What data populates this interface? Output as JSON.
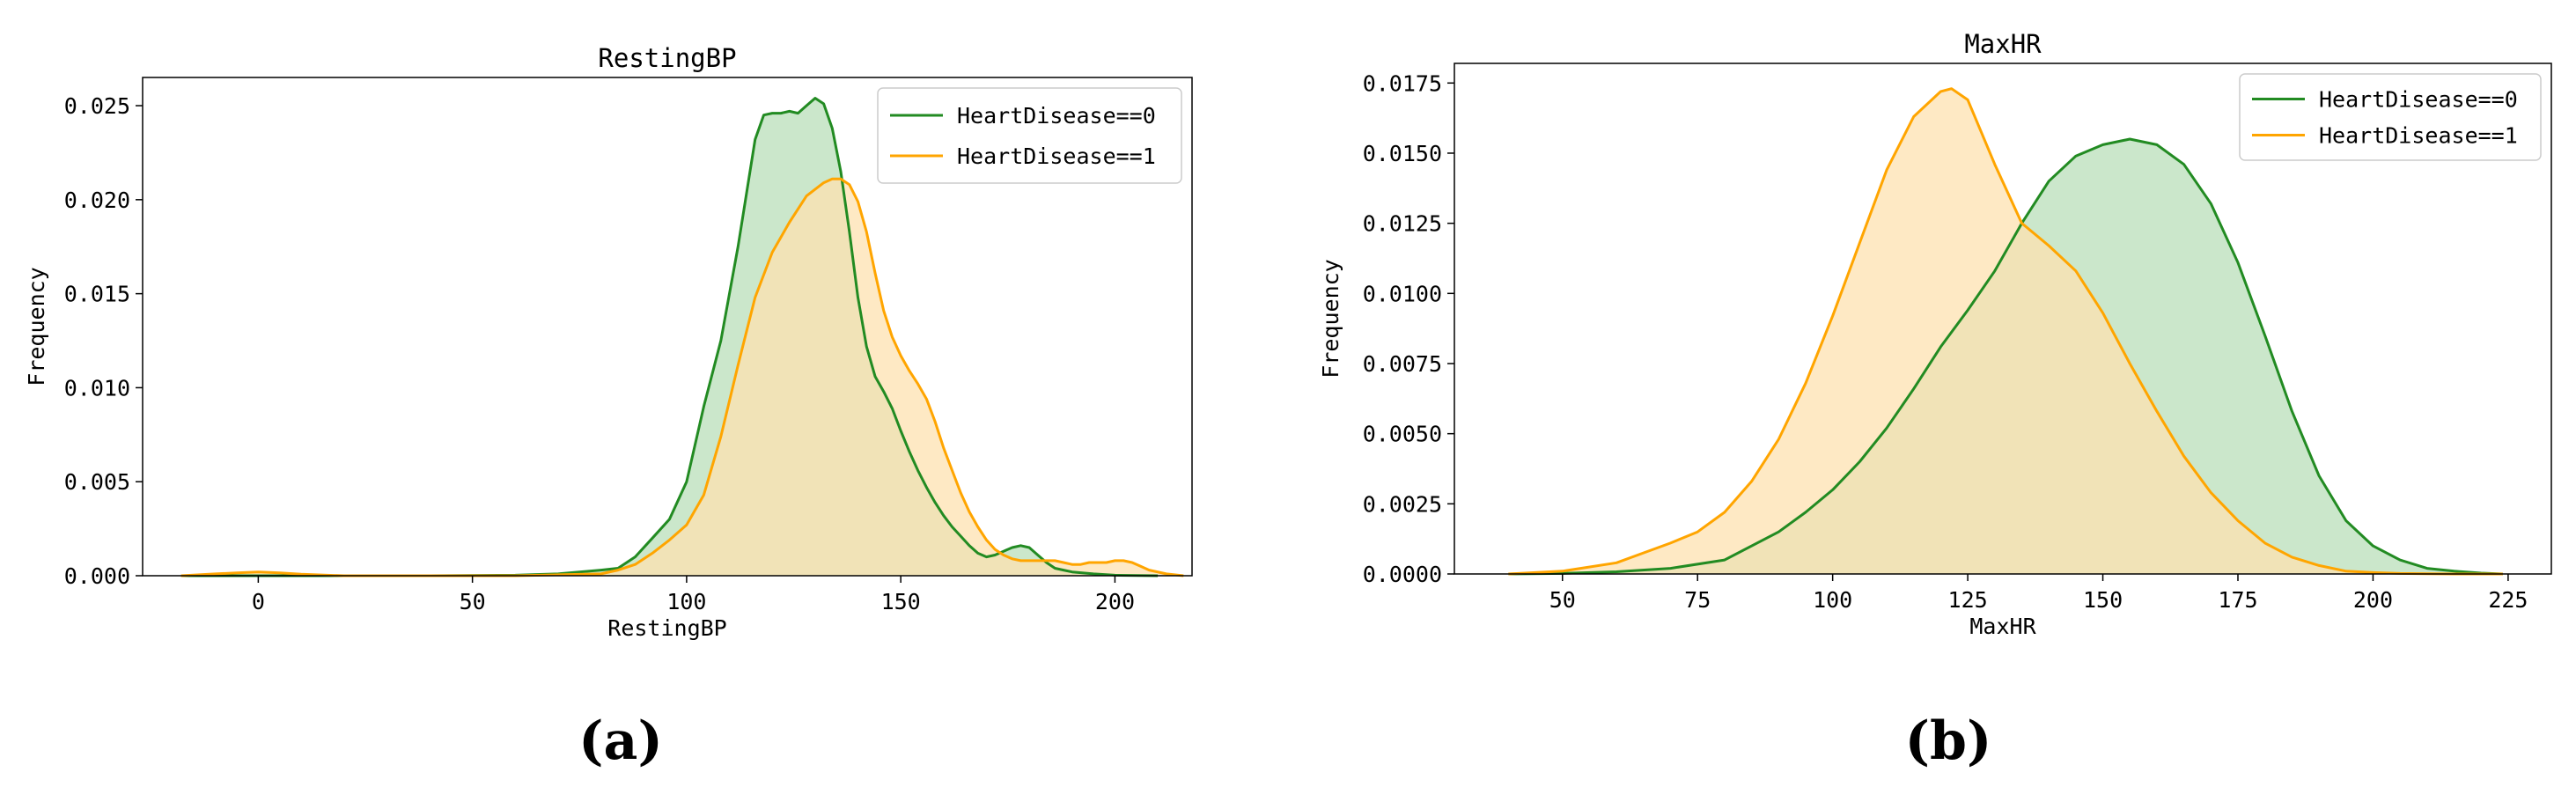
{
  "chart_data": [
    {
      "type": "area",
      "title": "RestingBP",
      "xlabel": "RestingBP",
      "ylabel": "Frequency",
      "xlim": [
        -27,
        218
      ],
      "ylim": [
        0,
        0.0265
      ],
      "xticks": [
        0,
        50,
        100,
        150,
        200
      ],
      "xtick_labels": [
        "0",
        "50",
        "100",
        "150",
        "200"
      ],
      "yticks": [
        0,
        0.005,
        0.01,
        0.015,
        0.02,
        0.025
      ],
      "ytick_labels": [
        "0.000",
        "0.005",
        "0.010",
        "0.015",
        "0.020",
        "0.025"
      ],
      "grid": false,
      "legend": "top-right",
      "panel_label": "(a)",
      "series": [
        {
          "name": "HeartDisease==0",
          "color": "#228B22",
          "fill": "#b9dfb9",
          "x": [
            -18,
            40,
            60,
            70,
            75,
            80,
            84,
            88,
            92,
            96,
            100,
            104,
            108,
            112,
            116,
            118,
            120,
            122,
            124,
            126,
            128,
            130,
            132,
            134,
            136,
            138,
            140,
            142,
            144,
            146,
            148,
            150,
            152,
            154,
            156,
            158,
            160,
            162,
            164,
            166,
            168,
            170,
            172,
            174,
            176,
            178,
            180,
            182,
            184,
            186,
            188,
            190,
            195,
            200,
            205,
            210
          ],
          "y": [
            0,
            0,
            3e-05,
            0.0001,
            0.0002,
            0.0003,
            0.0004,
            0.001,
            0.002,
            0.003,
            0.005,
            0.009,
            0.0125,
            0.0175,
            0.0232,
            0.0245,
            0.0246,
            0.0246,
            0.0247,
            0.0246,
            0.025,
            0.0254,
            0.0251,
            0.0238,
            0.0215,
            0.0183,
            0.0148,
            0.0122,
            0.0106,
            0.0098,
            0.0089,
            0.0077,
            0.0066,
            0.0056,
            0.0047,
            0.0039,
            0.0032,
            0.0026,
            0.0021,
            0.0016,
            0.0012,
            0.001,
            0.0011,
            0.0013,
            0.0015,
            0.0016,
            0.0015,
            0.0011,
            0.0007,
            0.0004,
            0.0003,
            0.0002,
            0.0001,
            3e-05,
            1e-05,
            0
          ]
        },
        {
          "name": "HeartDisease==1",
          "color": "#FFA500",
          "fill": "#fde2b0",
          "x": [
            -18,
            -10,
            -5,
            0,
            5,
            10,
            20,
            60,
            80,
            84,
            88,
            92,
            96,
            100,
            104,
            108,
            112,
            116,
            120,
            124,
            128,
            132,
            134,
            136,
            138,
            140,
            142,
            144,
            146,
            148,
            150,
            152,
            154,
            156,
            158,
            160,
            162,
            164,
            166,
            168,
            170,
            172,
            174,
            176,
            178,
            180,
            182,
            184,
            186,
            188,
            190,
            192,
            194,
            196,
            198,
            200,
            202,
            204,
            206,
            208,
            212,
            216
          ],
          "y": [
            0,
            0.0001,
            0.00015,
            0.0002,
            0.00015,
            8e-05,
            0,
            0,
            0.0001,
            0.0003,
            0.0006,
            0.0012,
            0.0019,
            0.0027,
            0.0043,
            0.0074,
            0.0112,
            0.0148,
            0.0172,
            0.0188,
            0.0202,
            0.0209,
            0.0211,
            0.0211,
            0.0208,
            0.0199,
            0.0183,
            0.0161,
            0.0141,
            0.0127,
            0.0117,
            0.0109,
            0.0102,
            0.0094,
            0.0082,
            0.0068,
            0.0056,
            0.0044,
            0.0034,
            0.0026,
            0.0019,
            0.0014,
            0.0011,
            0.0009,
            0.0008,
            0.0008,
            0.0008,
            0.0008,
            0.0008,
            0.0007,
            0.0006,
            0.0006,
            0.0007,
            0.0007,
            0.0007,
            0.0008,
            0.0008,
            0.0007,
            0.0005,
            0.0003,
            0.0001,
            0
          ]
        }
      ]
    },
    {
      "type": "area",
      "title": "MaxHR",
      "xlabel": "MaxHR",
      "ylabel": "Frequency",
      "xlim": [
        30,
        233
      ],
      "ylim": [
        0,
        0.0182
      ],
      "xticks": [
        50,
        75,
        100,
        125,
        150,
        175,
        200,
        225
      ],
      "xtick_labels": [
        "50",
        "75",
        "100",
        "125",
        "150",
        "175",
        "200",
        "225"
      ],
      "yticks": [
        0,
        0.0025,
        0.005,
        0.0075,
        0.01,
        0.0125,
        0.015,
        0.0175
      ],
      "ytick_labels": [
        "0.0000",
        "0.0025",
        "0.0050",
        "0.0075",
        "0.0100",
        "0.0125",
        "0.0150",
        "0.0175"
      ],
      "grid": false,
      "legend": "top-right",
      "panel_label": "(b)",
      "series": [
        {
          "name": "HeartDisease==0",
          "color": "#228B22",
          "fill": "#b9dfb9",
          "x": [
            40,
            50,
            60,
            70,
            80,
            90,
            95,
            100,
            105,
            110,
            115,
            120,
            125,
            130,
            135,
            140,
            145,
            150,
            155,
            160,
            165,
            170,
            175,
            180,
            185,
            190,
            195,
            200,
            205,
            210,
            215,
            220,
            224
          ],
          "y": [
            0,
            2e-05,
            8e-05,
            0.0002,
            0.0005,
            0.0015,
            0.0022,
            0.003,
            0.004,
            0.0052,
            0.0066,
            0.0081,
            0.0094,
            0.0108,
            0.0125,
            0.014,
            0.0149,
            0.0153,
            0.0155,
            0.0153,
            0.0146,
            0.0132,
            0.0111,
            0.0085,
            0.0058,
            0.0035,
            0.0019,
            0.001,
            0.0005,
            0.0002,
            0.0001,
            3e-05,
            0
          ]
        },
        {
          "name": "HeartDisease==1",
          "color": "#FFA500",
          "fill": "#fde2b0",
          "x": [
            40,
            50,
            60,
            70,
            75,
            80,
            85,
            90,
            95,
            100,
            105,
            110,
            115,
            120,
            122,
            125,
            130,
            135,
            140,
            145,
            150,
            155,
            160,
            165,
            170,
            175,
            180,
            185,
            190,
            195,
            200,
            205,
            210,
            215,
            224
          ],
          "y": [
            0,
            0.0001,
            0.0004,
            0.0011,
            0.0015,
            0.0022,
            0.0033,
            0.0048,
            0.0068,
            0.0092,
            0.0118,
            0.0144,
            0.0163,
            0.0172,
            0.0173,
            0.0169,
            0.0146,
            0.0125,
            0.0117,
            0.0108,
            0.0093,
            0.0075,
            0.0058,
            0.0042,
            0.0029,
            0.0019,
            0.0011,
            0.0006,
            0.0003,
            0.0001,
            5e-05,
            2e-05,
            1e-05,
            0,
            0
          ]
        }
      ]
    }
  ]
}
